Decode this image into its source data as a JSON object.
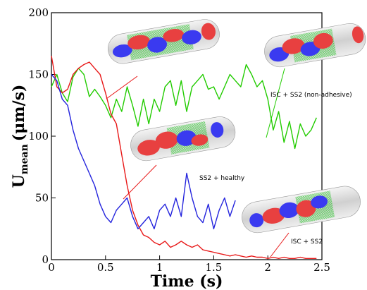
{
  "chart_data": {
    "type": "line",
    "xlabel": "Time (s)",
    "ylabel": "U",
    "ylabel_sub": "mean",
    "ylabel_unit": "(μm/s)",
    "xlim": [
      0,
      2.5
    ],
    "ylim": [
      0,
      200
    ],
    "xticks": [
      "0",
      "0.5",
      "1",
      "1.5",
      "2",
      "2.5"
    ],
    "yticks": [
      "0",
      "50",
      "100",
      "150",
      "200"
    ],
    "grid": false,
    "series": [
      {
        "color": "#22cc00",
        "x": [
          0,
          0.05,
          0.1,
          0.15,
          0.2,
          0.25,
          0.3,
          0.35,
          0.4,
          0.45,
          0.5,
          0.55,
          0.6,
          0.65,
          0.7,
          0.75,
          0.8,
          0.85,
          0.9,
          0.95,
          1.0,
          1.05,
          1.1,
          1.15,
          1.2,
          1.25,
          1.3,
          1.35,
          1.4,
          1.45,
          1.5,
          1.55,
          1.6,
          1.65,
          1.7,
          1.75,
          1.8,
          1.85,
          1.9,
          1.95,
          2.0,
          2.05,
          2.1,
          2.15,
          2.2,
          2.25,
          2.3,
          2.35,
          2.4,
          2.45
        ],
        "y": [
          140,
          150,
          135,
          128,
          148,
          155,
          150,
          132,
          138,
          132,
          125,
          115,
          130,
          120,
          140,
          125,
          108,
          130,
          110,
          130,
          120,
          140,
          145,
          125,
          145,
          120,
          140,
          145,
          150,
          138,
          140,
          130,
          140,
          150,
          145,
          140,
          158,
          150,
          140,
          145,
          130,
          105,
          120,
          95,
          112,
          90,
          110,
          100,
          105,
          115
        ]
      },
      {
        "color": "#e81818",
        "x": [
          0,
          0.05,
          0.1,
          0.15,
          0.2,
          0.25,
          0.3,
          0.35,
          0.4,
          0.45,
          0.5,
          0.55,
          0.6,
          0.65,
          0.7,
          0.75,
          0.8,
          0.85,
          0.9,
          0.95,
          1.0,
          1.05,
          1.1,
          1.15,
          1.2,
          1.25,
          1.3,
          1.35,
          1.4,
          1.45,
          1.5,
          1.55,
          1.6,
          1.65,
          1.7,
          1.75,
          1.8,
          1.85,
          1.9,
          1.95,
          2.0,
          2.05,
          2.1,
          2.15,
          2.2,
          2.25,
          2.3,
          2.35,
          2.4,
          2.45
        ],
        "y": [
          165,
          140,
          135,
          138,
          150,
          155,
          158,
          160,
          155,
          150,
          135,
          118,
          110,
          85,
          60,
          40,
          28,
          20,
          18,
          14,
          12,
          15,
          10,
          12,
          15,
          12,
          10,
          12,
          8,
          7,
          6,
          5,
          4,
          3,
          4,
          3,
          2,
          3,
          2,
          2,
          1,
          2,
          1,
          2,
          1,
          1,
          2,
          1,
          1,
          1
        ]
      },
      {
        "color": "#2424dd",
        "x": [
          0,
          0.05,
          0.1,
          0.15,
          0.2,
          0.25,
          0.3,
          0.35,
          0.4,
          0.45,
          0.5,
          0.55,
          0.6,
          0.65,
          0.7,
          0.75,
          0.8,
          0.85,
          0.9,
          0.95,
          1.0,
          1.05,
          1.1,
          1.15,
          1.2,
          1.25,
          1.3,
          1.35,
          1.4,
          1.45,
          1.5,
          1.55,
          1.6,
          1.65,
          1.7
        ],
        "y": [
          150,
          145,
          130,
          125,
          105,
          90,
          80,
          70,
          60,
          45,
          35,
          30,
          40,
          45,
          50,
          35,
          25,
          30,
          35,
          25,
          40,
          45,
          35,
          50,
          35,
          70,
          50,
          35,
          30,
          45,
          25,
          40,
          50,
          35,
          48
        ]
      }
    ],
    "annotations": [
      "ISC + SS2 (non-adhesive)",
      "SS2 + healthy",
      "ISC + SS2"
    ]
  }
}
